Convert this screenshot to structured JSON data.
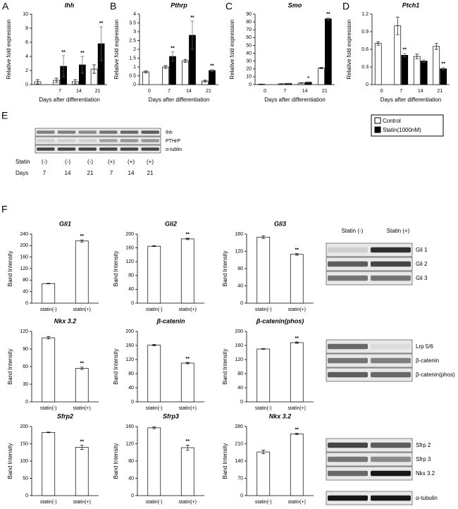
{
  "chart_data": [
    {
      "type": "bar",
      "panel": "A",
      "title": "Ihh",
      "ylabel": "Relative fold expression",
      "xlabel": "Days after differentiation",
      "categories": [
        null,
        "7",
        "14",
        "21"
      ],
      "series": [
        {
          "name": "Control",
          "color": "#ffffff",
          "values": [
            0.4,
            0.6,
            0.4,
            2.2
          ],
          "errors": [
            0.3,
            0.3,
            0.3,
            0.6
          ]
        },
        {
          "name": "Statin(1000nM)",
          "color": "#000000",
          "values": [
            null,
            2.6,
            2.8,
            5.8
          ],
          "errors": [
            null,
            1.5,
            1.2,
            2.4
          ],
          "significance": [
            null,
            "**",
            "**",
            "**"
          ]
        }
      ],
      "ylim": [
        0,
        10
      ],
      "yticks": [
        0,
        2,
        4,
        6,
        8,
        10
      ]
    },
    {
      "type": "bar",
      "panel": "B",
      "title": "Pthrp",
      "ylabel": "Relative fold expression",
      "xlabel": "Days after differentiation",
      "categories": [
        "0",
        "7",
        "14",
        "21"
      ],
      "series": [
        {
          "color": "#ffffff",
          "values": [
            0.72,
            1.0,
            1.35,
            0.2
          ],
          "errors": [
            0.05,
            0.08,
            0.08,
            0.05
          ]
        },
        {
          "color": "#000000",
          "values": [
            null,
            1.6,
            2.8,
            0.8
          ],
          "errors": [
            null,
            0.25,
            0.8,
            0.05
          ],
          "significance": [
            null,
            "**",
            "**",
            "**"
          ]
        }
      ],
      "ylim": [
        0,
        4
      ],
      "yticks": [
        0,
        0.5,
        1,
        1.5,
        2,
        2.5,
        3,
        3.5,
        4
      ]
    },
    {
      "type": "bar",
      "panel": "C",
      "title": "Smo",
      "ylabel": "Relative fold expression",
      "xlabel": "Days after differentiation",
      "categories": [
        "0",
        "7",
        "14",
        "21"
      ],
      "series": [
        {
          "color": "#ffffff",
          "values": [
            0.5,
            1,
            2,
            21
          ],
          "errors": [
            0.2,
            0.2,
            0.3,
            0.8
          ]
        },
        {
          "color": "#000000",
          "values": [
            null,
            1.5,
            3,
            84
          ],
          "errors": [
            null,
            0.3,
            0.5,
            1.5
          ],
          "significance": [
            null,
            null,
            "*",
            "**"
          ]
        }
      ],
      "ylim": [
        0,
        90
      ],
      "yticks": [
        0,
        10,
        20,
        30,
        40,
        50,
        60,
        70,
        80,
        90
      ]
    },
    {
      "type": "bar",
      "panel": "D",
      "title": "Ptch1",
      "ylabel": "Relative fold expression",
      "xlabel": "Days after differentiation",
      "categories": [
        "0",
        "7",
        "14",
        "21"
      ],
      "series": [
        {
          "color": "#ffffff",
          "values": [
            0.7,
            1.0,
            0.48,
            0.65
          ],
          "errors": [
            0.03,
            0.15,
            0.04,
            0.05
          ]
        },
        {
          "color": "#000000",
          "values": [
            null,
            0.5,
            0.4,
            0.27
          ],
          "errors": [
            null,
            0.03,
            0.02,
            0.02
          ],
          "significance": [
            null,
            "**",
            null,
            "**"
          ]
        }
      ],
      "ylim": [
        0,
        1.2
      ],
      "yticks": [
        0,
        0.3,
        0.6,
        0.9,
        1.2
      ]
    },
    {
      "type": "bar",
      "title": "Gli1",
      "ylabel": "Band Intensity",
      "categories": [
        "statin(-)",
        "statin(+)"
      ],
      "color": "#ffffff",
      "values": [
        68,
        216
      ],
      "errors": [
        1,
        4
      ],
      "significance": [
        null,
        "**"
      ],
      "ylim": [
        0,
        240
      ],
      "yticks": [
        0,
        40,
        80,
        120,
        160,
        200,
        240
      ]
    },
    {
      "type": "bar",
      "title": "Gli2",
      "ylabel": "Band Intensity",
      "categories": [
        "statin(-)",
        "statin(+)"
      ],
      "color": "#ffffff",
      "values": [
        165,
        186
      ],
      "errors": [
        1,
        2
      ],
      "significance": [
        null,
        "**"
      ],
      "ylim": [
        0,
        200
      ],
      "yticks": [
        0,
        40,
        80,
        120,
        160,
        200
      ]
    },
    {
      "type": "bar",
      "title": "Gli3",
      "ylabel": "Band Intensity",
      "categories": [
        "statin(-)",
        "statin(+)"
      ],
      "color": "#ffffff",
      "values": [
        153,
        113
      ],
      "errors": [
        3,
        2
      ],
      "significance": [
        null,
        "**"
      ],
      "ylim": [
        0,
        160
      ],
      "yticks": [
        0,
        40,
        80,
        120,
        160
      ]
    },
    {
      "type": "bar",
      "title": "Nkx 3.2",
      "ylabel": "Band Intensity",
      "categories": [
        "statin(-)",
        "statin(+)"
      ],
      "color": "#ffffff",
      "values": [
        109,
        57
      ],
      "errors": [
        2,
        2
      ],
      "significance": [
        null,
        "**"
      ],
      "ylim": [
        0,
        120
      ],
      "yticks": [
        0,
        30,
        60,
        90,
        120
      ]
    },
    {
      "type": "bar",
      "title": "β-catenin",
      "ylabel": "Band Intensity",
      "categories": [
        "statin(-)",
        "statin(+)"
      ],
      "color": "#ffffff",
      "values": [
        161,
        110
      ],
      "errors": [
        2,
        2
      ],
      "significance": [
        null,
        "**"
      ],
      "ylim": [
        0,
        200
      ],
      "yticks": [
        0,
        40,
        80,
        120,
        160,
        200
      ]
    },
    {
      "type": "bar",
      "title": "β-catenin(phos)",
      "ylabel": "Band Intensity",
      "categories": [
        "statin(-)",
        "statin(+)"
      ],
      "color": "#ffffff",
      "values": [
        150,
        168
      ],
      "errors": [
        1,
        2
      ],
      "significance": [
        null,
        "**"
      ],
      "ylim": [
        0,
        200
      ],
      "yticks": [
        0,
        40,
        80,
        120,
        160,
        200
      ]
    },
    {
      "type": "bar",
      "title": "Sfrp2",
      "ylabel": "Band Intensity",
      "categories": [
        "statin(-)",
        "statin(+)"
      ],
      "color": "#ffffff",
      "values": [
        183,
        140
      ],
      "errors": [
        1,
        6
      ],
      "significance": [
        null,
        "**"
      ],
      "ylim": [
        0,
        200
      ],
      "yticks": [
        0,
        50,
        100,
        150,
        200
      ]
    },
    {
      "type": "bar",
      "title": "Sfrp3",
      "ylabel": "Band Intensity",
      "categories": [
        "statin(-)",
        "statin(+)"
      ],
      "color": "#ffffff",
      "values": [
        157,
        111
      ],
      "errors": [
        2,
        6
      ],
      "significance": [
        null,
        "**"
      ],
      "ylim": [
        0,
        160
      ],
      "yticks": [
        0,
        40,
        80,
        120,
        160
      ]
    },
    {
      "type": "bar",
      "title": "Nkx 3.2",
      "ylabel": "Band Intensity",
      "categories": [
        "statin(-)",
        "statin(+)"
      ],
      "color": "#ffffff",
      "values": [
        177,
        250
      ],
      "errors": [
        7,
        3
      ],
      "significance": [
        null,
        "**"
      ],
      "ylim": [
        0,
        280
      ],
      "yticks": [
        0,
        70,
        140,
        210,
        280
      ]
    }
  ],
  "blot_e": {
    "label": "E",
    "bands": [
      "Ihh",
      "PTHrP",
      "α-tublin"
    ],
    "rows": [
      {
        "name": "Statin",
        "values": [
          "(-)",
          "(-)",
          "(-)",
          "(+)",
          "(+)",
          "(+)"
        ]
      },
      {
        "name": "Days",
        "values": [
          "7",
          "14",
          "21",
          "7",
          "14",
          "21"
        ]
      }
    ]
  },
  "blot_f": {
    "label": "F",
    "columns": [
      "Statin (-)",
      "Statin (+)"
    ],
    "groups": [
      {
        "bands": [
          "Gli 1",
          "Gli 2",
          "Gli 3"
        ]
      },
      {
        "bands": [
          "Lrp 5/6",
          "β-catenin",
          "β-catenin(phos)"
        ]
      },
      {
        "bands": [
          "Sfrp 2",
          "Sfrp 3",
          "Nkx 3.2"
        ]
      },
      {
        "bands": [
          "α-tubulin"
        ]
      }
    ]
  }
}
